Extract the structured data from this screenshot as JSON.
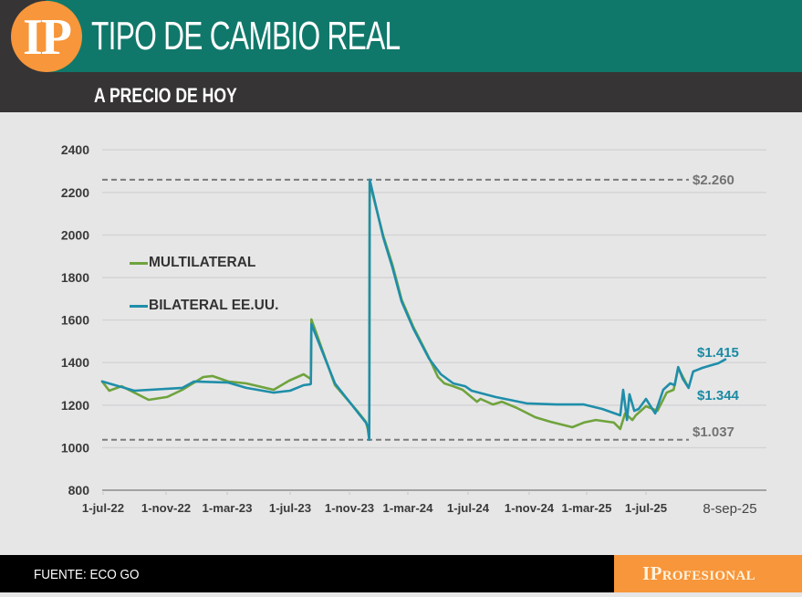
{
  "header": {
    "logo_text": "IP",
    "title": "TIPO DE CAMBIO REAL",
    "subtitle": "A PRECIO DE HOY"
  },
  "footer": {
    "source": "FUENTE: ECO GO",
    "brand": "IProfesional"
  },
  "colors": {
    "header_green": "#10786a",
    "header_dark": "#363435",
    "brand_orange": "#f7963a",
    "multilateral": "#6fa33c",
    "bilateral": "#1f8ea9",
    "reference": "#7a7a7a"
  },
  "chart_data": {
    "type": "line",
    "title": "TIPO DE CAMBIO REAL",
    "subtitle": "A PRECIO DE HOY",
    "xlabel": "",
    "ylabel": "",
    "ylim": [
      800,
      2400
    ],
    "y_ticks": [
      800,
      1000,
      1200,
      1400,
      1600,
      1800,
      2000,
      2200,
      2400
    ],
    "grid": true,
    "legend_position": "upper left",
    "x_ticks": [
      {
        "date": "2022-07-01",
        "label": "1-jul-22"
      },
      {
        "date": "2022-11-01",
        "label": "1-nov-22"
      },
      {
        "date": "2023-03-01",
        "label": "1-mar-23"
      },
      {
        "date": "2023-07-01",
        "label": "1-jul-23"
      },
      {
        "date": "2023-11-01",
        "label": "1-nov-23"
      },
      {
        "date": "2024-03-01",
        "label": "1-mar-24"
      },
      {
        "date": "2024-07-01",
        "label": "1-jul-24"
      },
      {
        "date": "2024-11-01",
        "label": "1-nov-24"
      },
      {
        "date": "2025-03-01",
        "label": "1-mar-25"
      },
      {
        "date": "2025-07-01",
        "label": "1-jul-25"
      },
      {
        "date": "2025-09-08",
        "label": "8-sep-25"
      }
    ],
    "series": [
      {
        "name": "MULTILATERAL",
        "color": "#6fa33c",
        "points": [
          [
            "2022-07-01",
            1311
          ],
          [
            "2022-07-13",
            1268
          ],
          [
            "2022-08-06",
            1289
          ],
          [
            "2022-08-31",
            1259
          ],
          [
            "2022-09-28",
            1225
          ],
          [
            "2022-11-03",
            1238
          ],
          [
            "2022-12-03",
            1272
          ],
          [
            "2023-01-13",
            1332
          ],
          [
            "2023-01-31",
            1337
          ],
          [
            "2023-03-03",
            1311
          ],
          [
            "2023-04-07",
            1302
          ],
          [
            "2023-05-30",
            1272
          ],
          [
            "2023-06-29",
            1315
          ],
          [
            "2023-07-29",
            1345
          ],
          [
            "2023-08-12",
            1324
          ],
          [
            "2023-08-13",
            1324
          ],
          [
            "2023-08-14",
            1603
          ],
          [
            "2023-10-02",
            1294
          ],
          [
            "2023-11-20",
            1165
          ],
          [
            "2023-12-05",
            1122
          ],
          [
            "2023-12-09",
            1088
          ],
          [
            "2023-12-12",
            1040
          ],
          [
            "2023-12-13",
            2246
          ],
          [
            "2024-01-10",
            1997
          ],
          [
            "2024-01-29",
            1860
          ],
          [
            "2024-02-17",
            1697
          ],
          [
            "2024-03-12",
            1568
          ],
          [
            "2024-04-13",
            1422
          ],
          [
            "2024-05-01",
            1332
          ],
          [
            "2024-05-14",
            1302
          ],
          [
            "2024-06-01",
            1289
          ],
          [
            "2024-06-20",
            1272
          ],
          [
            "2024-07-19",
            1216
          ],
          [
            "2024-07-26",
            1229
          ],
          [
            "2024-08-20",
            1203
          ],
          [
            "2024-09-07",
            1216
          ],
          [
            "2024-10-08",
            1186
          ],
          [
            "2024-11-14",
            1143
          ],
          [
            "2024-12-15",
            1122
          ],
          [
            "2025-01-30",
            1096
          ],
          [
            "2025-02-23",
            1118
          ],
          [
            "2025-03-20",
            1130
          ],
          [
            "2025-04-26",
            1118
          ],
          [
            "2025-05-09",
            1088
          ],
          [
            "2025-05-19",
            1161
          ],
          [
            "2025-06-03",
            1130
          ],
          [
            "2025-06-10",
            1152
          ],
          [
            "2025-07-01",
            1195
          ],
          [
            "2025-07-11",
            1173
          ],
          [
            "2025-07-19",
            1259
          ],
          [
            "2025-07-25",
            1272
          ],
          [
            "2025-07-29",
            1375
          ],
          [
            "2025-08-07",
            1281
          ]
        ]
      },
      {
        "name": "BILATERAL EE.UU.",
        "color": "#1f8ea9",
        "points": [
          [
            "2022-07-01",
            1311
          ],
          [
            "2022-08-31",
            1268
          ],
          [
            "2022-12-03",
            1281
          ],
          [
            "2022-12-26",
            1311
          ],
          [
            "2023-03-03",
            1306
          ],
          [
            "2023-04-07",
            1281
          ],
          [
            "2023-05-30",
            1259
          ],
          [
            "2023-07-01",
            1268
          ],
          [
            "2023-07-29",
            1294
          ],
          [
            "2023-08-12",
            1298
          ],
          [
            "2023-08-13",
            1300
          ],
          [
            "2023-08-14",
            1581
          ],
          [
            "2023-10-02",
            1302
          ],
          [
            "2023-11-20",
            1161
          ],
          [
            "2023-12-05",
            1118
          ],
          [
            "2023-12-09",
            1100
          ],
          [
            "2023-12-12",
            1037
          ],
          [
            "2023-12-13",
            2260
          ],
          [
            "2024-01-10",
            1989
          ],
          [
            "2024-01-29",
            1847
          ],
          [
            "2024-02-17",
            1688
          ],
          [
            "2024-03-12",
            1560
          ],
          [
            "2024-04-13",
            1418
          ],
          [
            "2024-05-07",
            1345
          ],
          [
            "2024-06-01",
            1302
          ],
          [
            "2024-06-25",
            1289
          ],
          [
            "2024-07-08",
            1268
          ],
          [
            "2024-08-25",
            1238
          ],
          [
            "2024-10-27",
            1208
          ],
          [
            "2024-12-28",
            1203
          ],
          [
            "2025-02-23",
            1203
          ],
          [
            "2025-04-02",
            1182
          ],
          [
            "2025-05-09",
            1152
          ],
          [
            "2025-05-15",
            1272
          ],
          [
            "2025-05-23",
            1130
          ],
          [
            "2025-05-28",
            1251
          ],
          [
            "2025-06-07",
            1173
          ],
          [
            "2025-06-16",
            1182
          ],
          [
            "2025-07-01",
            1229
          ],
          [
            "2025-07-09",
            1161
          ],
          [
            "2025-07-16",
            1272
          ],
          [
            "2025-07-22",
            1302
          ],
          [
            "2025-07-26",
            1294
          ],
          [
            "2025-07-29",
            1379
          ],
          [
            "2025-08-02",
            1324
          ],
          [
            "2025-08-07",
            1281
          ],
          [
            "2025-08-11",
            1358
          ],
          [
            "2025-08-19",
            1375
          ],
          [
            "2025-08-27",
            1388
          ],
          [
            "2025-09-02",
            1397
          ],
          [
            "2025-09-08",
            1415
          ]
        ]
      }
    ],
    "reference_lines": [
      {
        "value": 2260,
        "label": "$2.260",
        "style": "dashed"
      },
      {
        "value": 1037,
        "label": "$1.037",
        "style": "dashed"
      }
    ],
    "annotations": [
      {
        "label": "$1.415",
        "series": "BILATERAL EE.UU.",
        "value": 1415,
        "date": "2025-09-08"
      },
      {
        "label": "$1.344",
        "series": "MULTILATERAL",
        "value": 1344,
        "date": "2025-09-08"
      }
    ]
  }
}
